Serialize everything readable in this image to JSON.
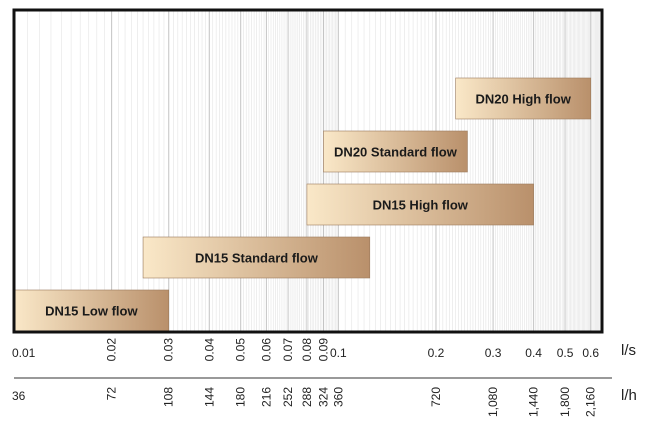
{
  "chart_data": {
    "type": "bar",
    "orientation": "horizontal-range",
    "x_scale": "log",
    "xlim": [
      0.01,
      0.65
    ],
    "grid": true,
    "series": [
      {
        "label": "DN15 Low flow",
        "x_start": 0.01,
        "x_end": 0.03
      },
      {
        "label": "DN15 Standard flow",
        "x_start": 0.025,
        "x_end": 0.125
      },
      {
        "label": "DN15 High flow",
        "x_start": 0.08,
        "x_end": 0.4
      },
      {
        "label": "DN20 Standard flow",
        "x_start": 0.09,
        "x_end": 0.25
      },
      {
        "label": "DN20 High flow",
        "x_start": 0.23,
        "x_end": 0.6
      }
    ],
    "axis_ls": {
      "unit": "l/s",
      "ticks": [
        {
          "value": 0.01,
          "label": "0.01"
        },
        {
          "value": 0.02,
          "label": "0.02"
        },
        {
          "value": 0.03,
          "label": "0.03"
        },
        {
          "value": 0.04,
          "label": "0.04"
        },
        {
          "value": 0.05,
          "label": "0.05"
        },
        {
          "value": 0.06,
          "label": "0.06"
        },
        {
          "value": 0.07,
          "label": "0.07"
        },
        {
          "value": 0.08,
          "label": "0.08"
        },
        {
          "value": 0.09,
          "label": "0.09"
        },
        {
          "value": 0.1,
          "label": "0.1"
        },
        {
          "value": 0.2,
          "label": "0.2"
        },
        {
          "value": 0.3,
          "label": "0.3"
        },
        {
          "value": 0.4,
          "label": "0.4"
        },
        {
          "value": 0.5,
          "label": "0.5"
        },
        {
          "value": 0.6,
          "label": "0.6"
        }
      ]
    },
    "axis_lh": {
      "unit": "l/h",
      "ticks": [
        {
          "value": 0.01,
          "label": "36"
        },
        {
          "value": 0.02,
          "label": "72"
        },
        {
          "value": 0.03,
          "label": "108"
        },
        {
          "value": 0.04,
          "label": "144"
        },
        {
          "value": 0.05,
          "label": "180"
        },
        {
          "value": 0.06,
          "label": "216"
        },
        {
          "value": 0.07,
          "label": "252"
        },
        {
          "value": 0.08,
          "label": "288"
        },
        {
          "value": 0.09,
          "label": "324"
        },
        {
          "value": 0.1,
          "label": "360"
        },
        {
          "value": 0.2,
          "label": "720"
        },
        {
          "value": 0.3,
          "label": "1,080"
        },
        {
          "value": 0.4,
          "label": "1,440"
        },
        {
          "value": 0.5,
          "label": "1,800"
        },
        {
          "value": 0.6,
          "label": "2,160"
        }
      ]
    },
    "colors": {
      "bar_start": "#fae8c8",
      "bar_end": "#b9906b",
      "grid_fine": "#e4e4e4",
      "grid_major": "#c4c4c4",
      "frame": "#111111"
    }
  }
}
